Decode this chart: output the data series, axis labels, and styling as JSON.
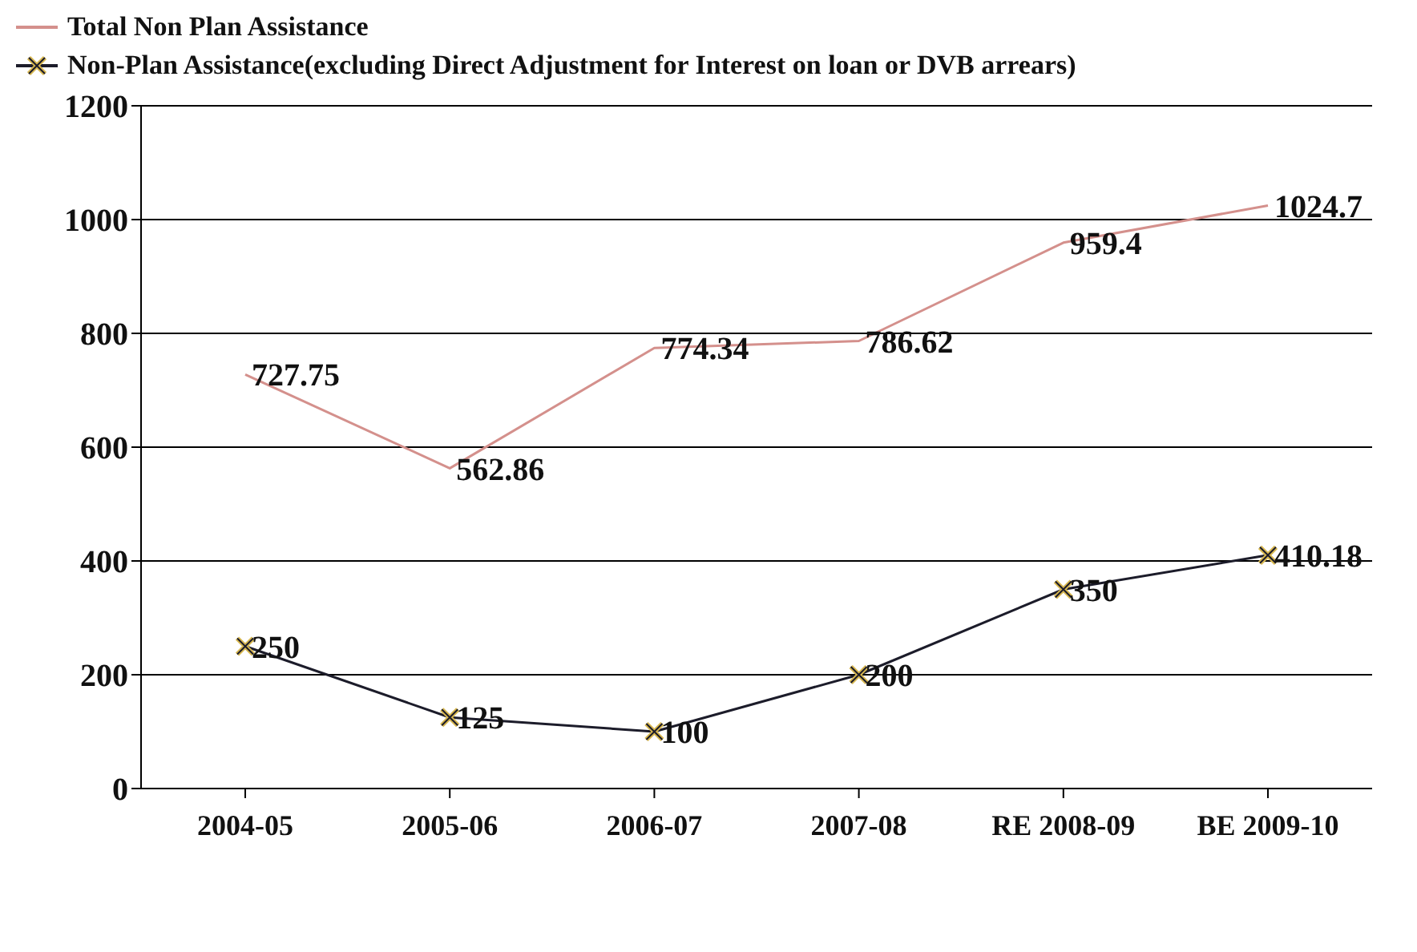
{
  "chart_data": {
    "type": "line",
    "categories": [
      "2004-05",
      "2005-06",
      "2006-07",
      "2007-08",
      "RE 2008-09",
      "BE 2009-10"
    ],
    "series": [
      {
        "name": "Total Non Plan Assistance",
        "color": "#d4908c",
        "marker": "none",
        "values": [
          727.75,
          562.86,
          774.34,
          786.62,
          959.4,
          1024.7
        ]
      },
      {
        "name": "Non-Plan Assistance(excluding Direct Adjustment for Interest on loan or DVB arrears)",
        "color": "#1c1c2a",
        "marker": "cross",
        "values": [
          250,
          125,
          100,
          200,
          350,
          410.18
        ]
      }
    ],
    "ylim": [
      0,
      1200
    ],
    "yticks": [
      0,
      200,
      400,
      600,
      800,
      1000,
      1200
    ],
    "grid": "y",
    "legend": "top left",
    "data_labels": true
  }
}
